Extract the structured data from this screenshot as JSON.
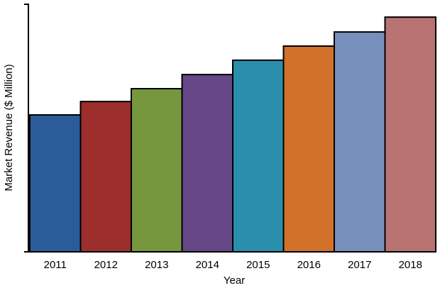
{
  "chart_data": {
    "type": "bar",
    "x_label": "Year",
    "y_label": "Market Revenue ($ Million)",
    "categories": [
      "2011",
      "2012",
      "2013",
      "2014",
      "2015",
      "2016",
      "2017",
      "2018"
    ],
    "values": [
      55.3,
      60.7,
      65.9,
      71.6,
      77.4,
      83.1,
      88.8,
      94.8
    ],
    "colors": [
      "#2b5c9a",
      "#9c2f2c",
      "#76973d",
      "#664787",
      "#2a8fad",
      "#d2712a",
      "#7790bb",
      "#b97373"
    ],
    "ylim": [
      0,
      100
    ],
    "grid": false
  }
}
